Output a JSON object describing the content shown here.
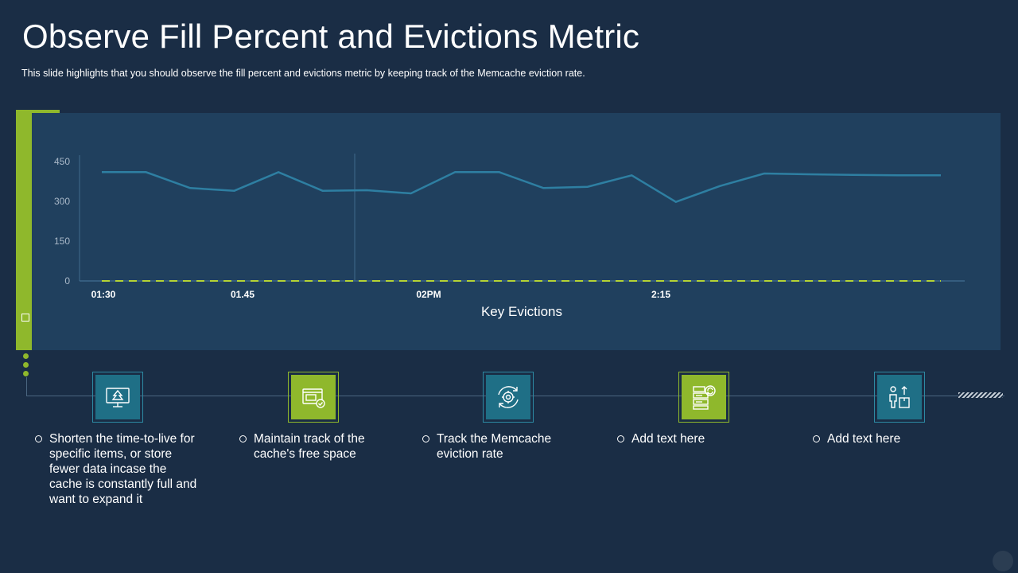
{
  "title": "Observe Fill Percent and Evictions Metric",
  "subtitle": "This slide highlights that you should observe  the fill percent and evictions  metric by keeping track of the Memcache eviction rate.",
  "chart_data": {
    "type": "line",
    "xlabel": "Key Evictions",
    "x_ticks": [
      "01:30",
      "01.45",
      "02PM",
      "2:15"
    ],
    "y_ticks": [
      "0",
      "150",
      "300",
      "450"
    ],
    "ylim": [
      0,
      450
    ],
    "grid": false,
    "series": [
      {
        "color": "#2e7fa2",
        "style": "solid",
        "values": [
          410,
          410,
          350,
          340,
          410,
          340,
          342,
          330,
          410,
          410,
          350,
          355,
          398,
          298,
          358,
          405,
          402,
          400,
          398,
          398
        ]
      },
      {
        "color": "#b5d334",
        "style": "dashed",
        "values": [
          0,
          0,
          0,
          0,
          0,
          0,
          0,
          0,
          0,
          0,
          0,
          0,
          0,
          0,
          0,
          0,
          0,
          0,
          0,
          0
        ]
      }
    ]
  },
  "items": [
    {
      "icon": "monitor-tree-icon",
      "color": "blue",
      "text": "Shorten the time-to-live for specific items, or store fewer data incase the cache is constantly  full and want to expand it"
    },
    {
      "icon": "browser-check-icon",
      "color": "green",
      "text": "Maintain track of the cache's free space"
    },
    {
      "icon": "gear-refresh-icon",
      "color": "blue",
      "text": "Track the Memcache eviction rate"
    },
    {
      "icon": "server-sync-icon",
      "color": "green",
      "text": "Add text here"
    },
    {
      "icon": "person-box-icon",
      "color": "blue",
      "text": "Add text here"
    }
  ]
}
